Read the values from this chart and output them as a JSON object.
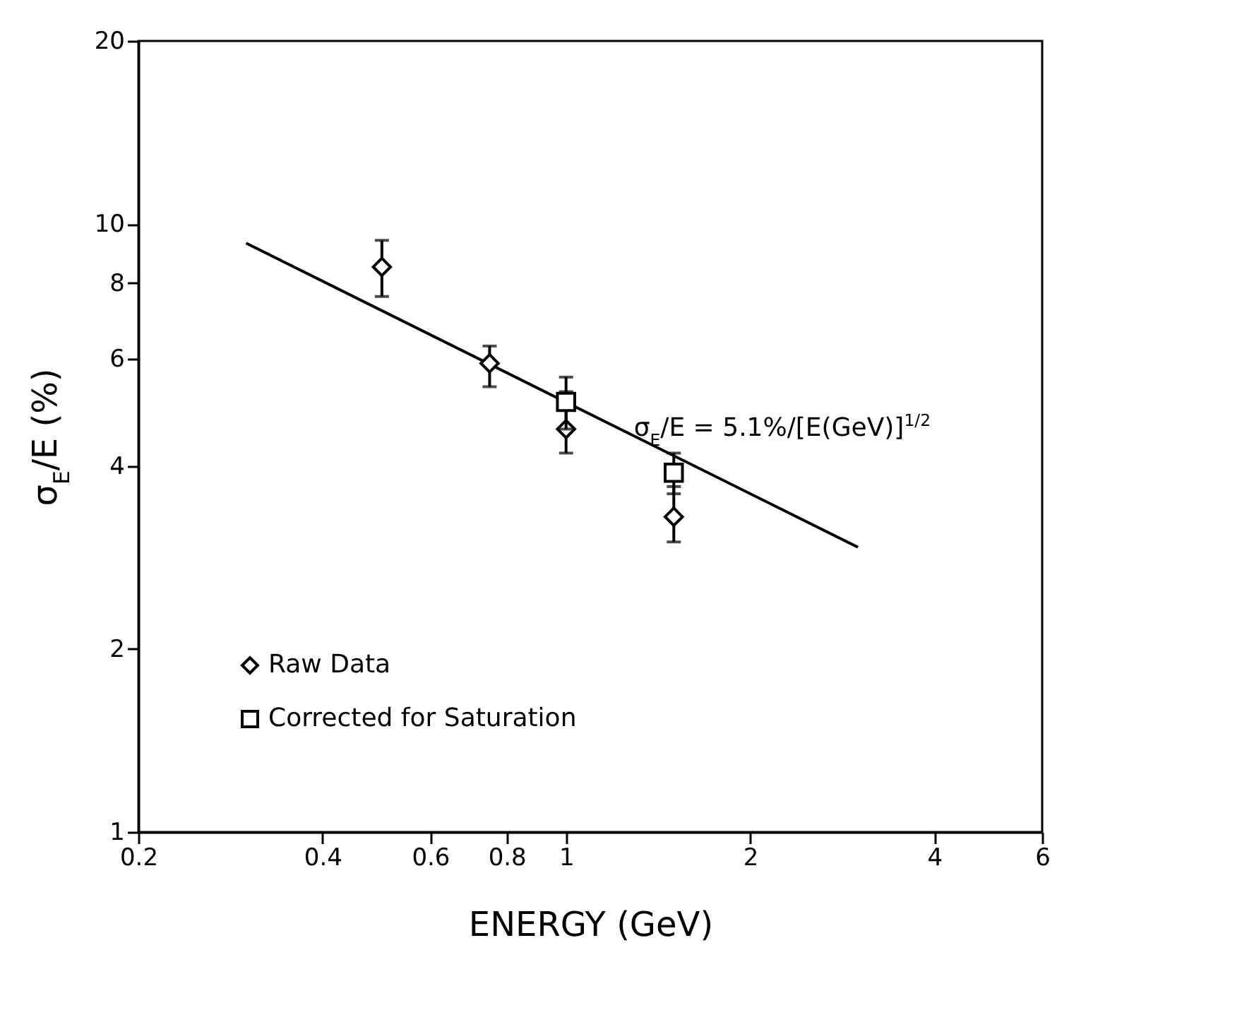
{
  "chart_data": {
    "type": "scatter",
    "xlabel": "ENERGY (GeV)",
    "ylabel": "σ$_{E}$/E (%)",
    "xlim": [
      0.2,
      6
    ],
    "xticks": [
      0.2,
      0.4,
      0.6,
      0.8,
      1,
      2,
      4,
      6
    ],
    "ylim": [
      1,
      20
    ],
    "yticks": [
      1,
      2,
      4,
      6,
      8,
      10,
      20
    ],
    "log": "xy",
    "grid": false,
    "legend": "bottom left",
    "annotations": [
      {
        "text": "σ$_{E}$/E = 5.1%/[E(GeV)]$^{1/2}$",
        "x": 1.25,
        "y": 4.6
      }
    ],
    "series": [
      {
        "name": "Raw Data",
        "type": "scatter",
        "marker": "diamond",
        "color": "#000000",
        "x": [
          0.5,
          0.75,
          1.0,
          1.5
        ],
        "values": [
          8.5,
          5.9,
          4.6,
          3.3
        ],
        "errors": [
          [
            7.6,
            9.4
          ],
          [
            5.4,
            6.3
          ],
          [
            4.2,
            5.3
          ],
          [
            3.0,
            3.7
          ]
        ]
      },
      {
        "name": "Corrected for Saturation",
        "type": "scatter",
        "marker": "square",
        "color": "#000000",
        "x": [
          1.0,
          1.5
        ],
        "values": [
          5.1,
          3.9
        ],
        "errors": [
          [
            4.6,
            5.6
          ],
          [
            3.6,
            4.2
          ]
        ]
      },
      {
        "type": "line",
        "color": "#000000",
        "x": [
          0.3,
          3.0
        ],
        "values": [
          9.3,
          2.94
        ]
      }
    ]
  }
}
